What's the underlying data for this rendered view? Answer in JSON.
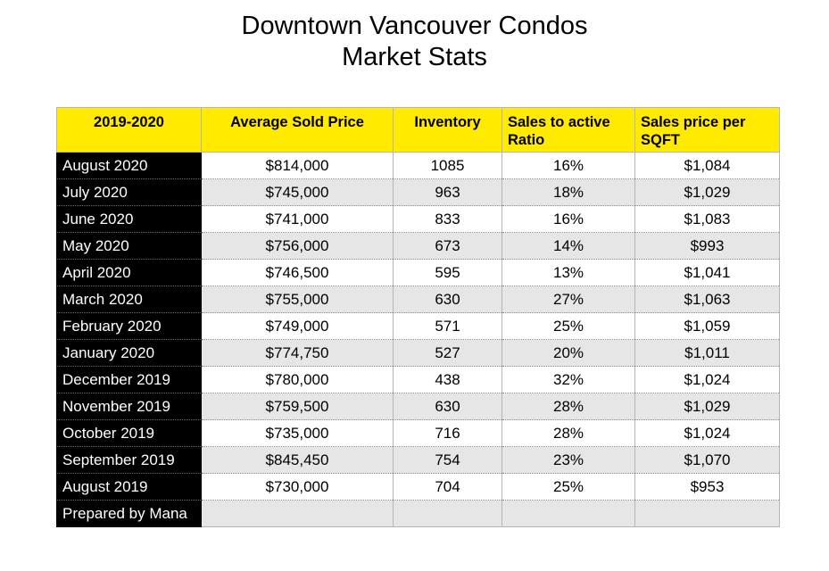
{
  "title": {
    "line1": "Downtown Vancouver Condos",
    "line2": "Market Stats"
  },
  "table": {
    "headers": [
      "2019-2020",
      "Average Sold Price",
      "Inventory",
      "Sales to active Ratio",
      "Sales price per SQFT"
    ],
    "rows": [
      [
        "August 2020",
        "$814,000",
        "1085",
        "16%",
        "$1,084"
      ],
      [
        "July 2020",
        "$745,000",
        "963",
        "18%",
        "$1,029"
      ],
      [
        "June 2020",
        "$741,000",
        "833",
        "16%",
        "$1,083"
      ],
      [
        "May 2020",
        "$756,000",
        "673",
        "14%",
        "$993"
      ],
      [
        "April 2020",
        "$746,500",
        "595",
        "13%",
        "$1,041"
      ],
      [
        "March 2020",
        "$755,000",
        "630",
        "27%",
        "$1,063"
      ],
      [
        "February 2020",
        "$749,000",
        "571",
        "25%",
        "$1,059"
      ],
      [
        "January 2020",
        "$774,750",
        "527",
        "20%",
        "$1,011"
      ],
      [
        "December 2019",
        "$780,000",
        "438",
        "32%",
        "$1,024"
      ],
      [
        "November 2019",
        "$759,500",
        "630",
        "28%",
        "$1,029"
      ],
      [
        "October 2019",
        "$735,000",
        "716",
        "28%",
        "$1,024"
      ],
      [
        "September 2019",
        "$845,450",
        "754",
        "23%",
        "$1,070"
      ],
      [
        "August 2019",
        "$730,000",
        "704",
        "25%",
        "$953"
      ]
    ],
    "footer": [
      "Prepared by Mana",
      "",
      "",
      "",
      ""
    ]
  },
  "colors": {
    "header_bg": "#ffea00",
    "label_bg": "#000000",
    "label_text": "#ffffff",
    "alt_row_bg": "#e6e6e6"
  }
}
